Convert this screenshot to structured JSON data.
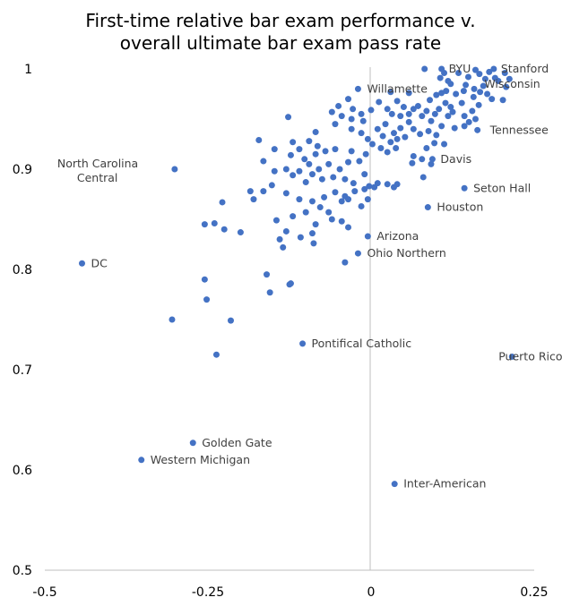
{
  "chart_data": {
    "type": "scatter",
    "title": [
      "First-time relative bar exam performance v.",
      "overall ultimate bar exam pass rate"
    ],
    "xlabel": "",
    "ylabel": "",
    "xlim": [
      -0.5,
      0.25
    ],
    "ylim": [
      0.5,
      1.0
    ],
    "xticks": [
      "-0.5",
      "-0.25",
      "0",
      "0.25"
    ],
    "xtick_values": [
      -0.5,
      -0.25,
      0,
      0.25
    ],
    "yticks": [
      "0.5",
      "0.6",
      "0.7",
      "0.8",
      "0.9",
      "1"
    ],
    "ytick_values": [
      0.5,
      0.6,
      0.7,
      0.8,
      0.9,
      1.0
    ],
    "grid": false,
    "legend": "none",
    "color": "#4472C4",
    "axis_color": "#BFBFBF",
    "labeled_points": [
      {
        "label": "BYU",
        "x": 0.108,
        "y": 1.0
      },
      {
        "label": "Stanford",
        "x": 0.188,
        "y": 1.0
      },
      {
        "label": "Wisconsin",
        "x": 0.19,
        "y": 0.991
      },
      {
        "label": "Willamette",
        "x": -0.02,
        "y": 0.98
      },
      {
        "label": "Tennessee",
        "x": 0.163,
        "y": 0.939
      },
      {
        "label": "North Carolina Central",
        "x": -0.301,
        "y": 0.9
      },
      {
        "label": "Davis",
        "x": 0.094,
        "y": 0.91
      },
      {
        "label": "Seton Hall",
        "x": 0.143,
        "y": 0.881
      },
      {
        "label": "Houston",
        "x": 0.087,
        "y": 0.862
      },
      {
        "label": "Arizona",
        "x": -0.005,
        "y": 0.833
      },
      {
        "label": "Ohio Northern",
        "x": -0.02,
        "y": 0.816
      },
      {
        "label": "DC",
        "x": -0.443,
        "y": 0.806
      },
      {
        "label": "Pontifical Catholic",
        "x": -0.105,
        "y": 0.726
      },
      {
        "label": "Puerto Rico",
        "x": 0.216,
        "y": 0.713
      },
      {
        "label": "Golden Gate",
        "x": -0.273,
        "y": 0.627
      },
      {
        "label": "Western Michigan",
        "x": -0.352,
        "y": 0.61
      },
      {
        "label": "Inter-American",
        "x": 0.036,
        "y": 0.586
      }
    ],
    "points": [
      {
        "x": 0.082,
        "y": 1.0
      },
      {
        "x": 0.112,
        "y": 0.996
      },
      {
        "x": 0.106,
        "y": 0.991
      },
      {
        "x": 0.118,
        "y": 0.988
      },
      {
        "x": 0.134,
        "y": 0.996
      },
      {
        "x": 0.149,
        "y": 0.992
      },
      {
        "x": 0.16,
        "y": 0.999
      },
      {
        "x": 0.166,
        "y": 0.995
      },
      {
        "x": 0.175,
        "y": 0.99
      },
      {
        "x": 0.181,
        "y": 0.997
      },
      {
        "x": 0.205,
        "y": 0.996
      },
      {
        "x": 0.212,
        "y": 0.99
      },
      {
        "x": 0.122,
        "y": 0.985
      },
      {
        "x": 0.145,
        "y": 0.984
      },
      {
        "x": 0.158,
        "y": 0.98
      },
      {
        "x": 0.172,
        "y": 0.983
      },
      {
        "x": 0.195,
        "y": 0.988
      },
      {
        "x": 0.207,
        "y": 0.982
      },
      {
        "x": 0.115,
        "y": 0.978
      },
      {
        "x": 0.13,
        "y": 0.975
      },
      {
        "x": 0.142,
        "y": 0.978
      },
      {
        "x": 0.157,
        "y": 0.972
      },
      {
        "x": 0.167,
        "y": 0.977
      },
      {
        "x": 0.178,
        "y": 0.975
      },
      {
        "x": 0.185,
        "y": 0.97
      },
      {
        "x": 0.202,
        "y": 0.969
      },
      {
        "x": 0.09,
        "y": 0.969
      },
      {
        "x": 0.1,
        "y": 0.974
      },
      {
        "x": 0.108,
        "y": 0.976
      },
      {
        "x": 0.114,
        "y": 0.966
      },
      {
        "x": 0.122,
        "y": 0.962
      },
      {
        "x": 0.139,
        "y": 0.966
      },
      {
        "x": 0.155,
        "y": 0.958
      },
      {
        "x": 0.165,
        "y": 0.964
      },
      {
        "x": 0.058,
        "y": 0.976
      },
      {
        "x": 0.072,
        "y": 0.963
      },
      {
        "x": 0.085,
        "y": 0.958
      },
      {
        "x": 0.098,
        "y": 0.955
      },
      {
        "x": 0.104,
        "y": 0.96
      },
      {
        "x": 0.118,
        "y": 0.953
      },
      {
        "x": 0.125,
        "y": 0.957
      },
      {
        "x": 0.143,
        "y": 0.953
      },
      {
        "x": 0.15,
        "y": 0.947
      },
      {
        "x": 0.16,
        "y": 0.95
      },
      {
        "x": 0.03,
        "y": 0.977
      },
      {
        "x": 0.04,
        "y": 0.968
      },
      {
        "x": 0.05,
        "y": 0.962
      },
      {
        "x": 0.065,
        "y": 0.96
      },
      {
        "x": 0.078,
        "y": 0.953
      },
      {
        "x": 0.092,
        "y": 0.948
      },
      {
        "x": 0.108,
        "y": 0.943
      },
      {
        "x": 0.128,
        "y": 0.941
      },
      {
        "x": 0.143,
        "y": 0.943
      },
      {
        "x": 0.012,
        "y": 0.967
      },
      {
        "x": 0.025,
        "y": 0.96
      },
      {
        "x": 0.032,
        "y": 0.955
      },
      {
        "x": 0.045,
        "y": 0.953
      },
      {
        "x": 0.058,
        "y": 0.947
      },
      {
        "x": 0.065,
        "y": 0.94
      },
      {
        "x": 0.075,
        "y": 0.935
      },
      {
        "x": 0.088,
        "y": 0.938
      },
      {
        "x": 0.1,
        "y": 0.934
      },
      {
        "x": 0.058,
        "y": 0.955
      },
      {
        "x": 0.022,
        "y": 0.945
      },
      {
        "x": 0.035,
        "y": 0.936
      },
      {
        "x": 0.045,
        "y": 0.941
      },
      {
        "x": 0.052,
        "y": 0.932
      },
      {
        "x": 0.01,
        "y": 0.94
      },
      {
        "x": 0.018,
        "y": 0.933
      },
      {
        "x": 0.03,
        "y": 0.927
      },
      {
        "x": 0.04,
        "y": 0.93
      },
      {
        "x": -0.005,
        "y": 0.93
      },
      {
        "x": 0.002,
        "y": 0.925
      },
      {
        "x": 0.015,
        "y": 0.921
      },
      {
        "x": 0.025,
        "y": 0.917
      },
      {
        "x": 0.038,
        "y": 0.921
      },
      {
        "x": 0.065,
        "y": 0.913
      },
      {
        "x": 0.085,
        "y": 0.921
      },
      {
        "x": 0.097,
        "y": 0.926
      },
      {
        "x": 0.112,
        "y": 0.925
      },
      {
        "x": 0.063,
        "y": 0.906
      },
      {
        "x": 0.078,
        "y": 0.91
      },
      {
        "x": 0.092,
        "y": 0.905
      },
      {
        "x": -0.035,
        "y": 0.97
      },
      {
        "x": -0.028,
        "y": 0.96
      },
      {
        "x": -0.015,
        "y": 0.955
      },
      {
        "x": 0.0,
        "y": 0.959
      },
      {
        "x": -0.05,
        "y": 0.963
      },
      {
        "x": -0.045,
        "y": 0.953
      },
      {
        "x": -0.03,
        "y": 0.95
      },
      {
        "x": -0.06,
        "y": 0.957
      },
      {
        "x": -0.055,
        "y": 0.945
      },
      {
        "x": -0.03,
        "y": 0.94
      },
      {
        "x": -0.015,
        "y": 0.936
      },
      {
        "x": -0.012,
        "y": 0.948
      },
      {
        "x": -0.127,
        "y": 0.952
      },
      {
        "x": -0.085,
        "y": 0.937
      },
      {
        "x": -0.095,
        "y": 0.928
      },
      {
        "x": -0.12,
        "y": 0.927
      },
      {
        "x": -0.11,
        "y": 0.92
      },
      {
        "x": -0.082,
        "y": 0.923
      },
      {
        "x": -0.07,
        "y": 0.918
      },
      {
        "x": -0.055,
        "y": 0.92
      },
      {
        "x": -0.03,
        "y": 0.918
      },
      {
        "x": -0.008,
        "y": 0.915
      },
      {
        "x": -0.085,
        "y": 0.915
      },
      {
        "x": -0.102,
        "y": 0.91
      },
      {
        "x": -0.123,
        "y": 0.914
      },
      {
        "x": -0.172,
        "y": 0.929
      },
      {
        "x": -0.148,
        "y": 0.92
      },
      {
        "x": -0.095,
        "y": 0.905
      },
      {
        "x": -0.08,
        "y": 0.9
      },
      {
        "x": -0.065,
        "y": 0.905
      },
      {
        "x": -0.048,
        "y": 0.9
      },
      {
        "x": -0.035,
        "y": 0.907
      },
      {
        "x": -0.018,
        "y": 0.908
      },
      {
        "x": -0.01,
        "y": 0.895
      },
      {
        "x": -0.13,
        "y": 0.9
      },
      {
        "x": -0.11,
        "y": 0.898
      },
      {
        "x": -0.09,
        "y": 0.895
      },
      {
        "x": -0.075,
        "y": 0.89
      },
      {
        "x": -0.058,
        "y": 0.892
      },
      {
        "x": -0.04,
        "y": 0.89
      },
      {
        "x": -0.027,
        "y": 0.886
      },
      {
        "x": -0.1,
        "y": 0.887
      },
      {
        "x": -0.12,
        "y": 0.894
      },
      {
        "x": -0.148,
        "y": 0.898
      },
      {
        "x": -0.165,
        "y": 0.908
      },
      {
        "x": 0.01,
        "y": 0.886
      },
      {
        "x": 0.025,
        "y": 0.885
      },
      {
        "x": 0.035,
        "y": 0.882
      },
      {
        "x": 0.04,
        "y": 0.885
      },
      {
        "x": 0.005,
        "y": 0.882
      },
      {
        "x": -0.003,
        "y": 0.883
      },
      {
        "x": -0.01,
        "y": 0.88
      },
      {
        "x": 0.08,
        "y": 0.892
      },
      {
        "x": -0.025,
        "y": 0.878
      },
      {
        "x": -0.04,
        "y": 0.873
      },
      {
        "x": -0.055,
        "y": 0.877
      },
      {
        "x": -0.072,
        "y": 0.872
      },
      {
        "x": -0.09,
        "y": 0.868
      },
      {
        "x": -0.11,
        "y": 0.87
      },
      {
        "x": -0.13,
        "y": 0.876
      },
      {
        "x": -0.152,
        "y": 0.884
      },
      {
        "x": -0.165,
        "y": 0.878
      },
      {
        "x": -0.185,
        "y": 0.878
      },
      {
        "x": -0.18,
        "y": 0.87
      },
      {
        "x": -0.045,
        "y": 0.868
      },
      {
        "x": -0.035,
        "y": 0.87
      },
      {
        "x": -0.005,
        "y": 0.87
      },
      {
        "x": -0.015,
        "y": 0.863
      },
      {
        "x": -0.078,
        "y": 0.862
      },
      {
        "x": -0.065,
        "y": 0.857
      },
      {
        "x": -0.1,
        "y": 0.857
      },
      {
        "x": -0.12,
        "y": 0.853
      },
      {
        "x": -0.145,
        "y": 0.849
      },
      {
        "x": -0.13,
        "y": 0.838
      },
      {
        "x": -0.085,
        "y": 0.845
      },
      {
        "x": -0.06,
        "y": 0.85
      },
      {
        "x": -0.045,
        "y": 0.848
      },
      {
        "x": -0.035,
        "y": 0.842
      },
      {
        "x": -0.255,
        "y": 0.845
      },
      {
        "x": -0.24,
        "y": 0.846
      },
      {
        "x": -0.225,
        "y": 0.84
      },
      {
        "x": -0.2,
        "y": 0.837
      },
      {
        "x": -0.228,
        "y": 0.867
      },
      {
        "x": -0.09,
        "y": 0.836
      },
      {
        "x": -0.108,
        "y": 0.832
      },
      {
        "x": -0.14,
        "y": 0.83
      },
      {
        "x": -0.088,
        "y": 0.826
      },
      {
        "x": -0.135,
        "y": 0.822
      },
      {
        "x": -0.255,
        "y": 0.79
      },
      {
        "x": -0.16,
        "y": 0.795
      },
      {
        "x": -0.125,
        "y": 0.785
      },
      {
        "x": -0.123,
        "y": 0.786
      },
      {
        "x": -0.155,
        "y": 0.777
      },
      {
        "x": -0.252,
        "y": 0.77
      },
      {
        "x": -0.04,
        "y": 0.807
      },
      {
        "x": -0.305,
        "y": 0.75
      },
      {
        "x": -0.215,
        "y": 0.749
      },
      {
        "x": -0.237,
        "y": 0.715
      }
    ]
  }
}
